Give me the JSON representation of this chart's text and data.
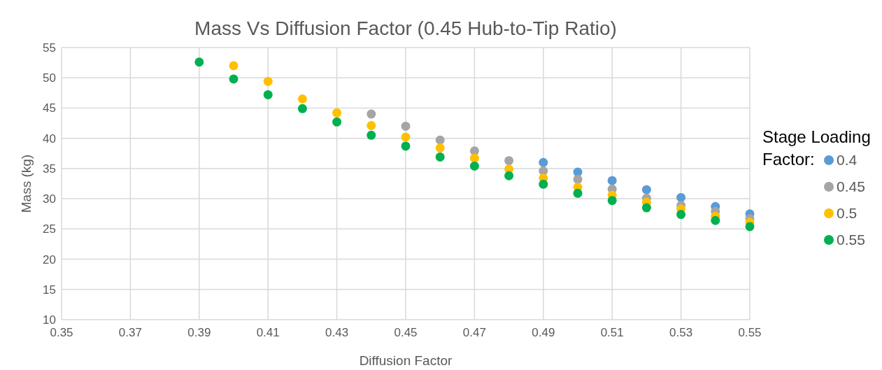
{
  "chart_data": {
    "type": "scatter",
    "title": "Mass Vs Diffusion Factor (0.45 Hub-to-Tip Ratio)",
    "xlabel": "Diffusion Factor",
    "ylabel": "Mass (kg)",
    "legend_title": "Stage Loading Factor:",
    "x": [
      0.39,
      0.4,
      0.41,
      0.42,
      0.43,
      0.44,
      0.45,
      0.46,
      0.47,
      0.48,
      0.49,
      0.5,
      0.51,
      0.52,
      0.53,
      0.54,
      0.55
    ],
    "series": [
      {
        "name": "0.4",
        "color": "#5b9bd5",
        "values": [
          null,
          null,
          null,
          null,
          null,
          null,
          null,
          null,
          null,
          null,
          36.0,
          34.4,
          33.0,
          31.5,
          30.2,
          28.7,
          27.5
        ]
      },
      {
        "name": "0.45",
        "color": "#a5a5a5",
        "values": [
          null,
          null,
          null,
          null,
          null,
          44.0,
          42.0,
          39.7,
          37.9,
          36.3,
          34.6,
          33.2,
          31.6,
          30.1,
          28.9,
          27.9,
          26.7
        ]
      },
      {
        "name": "0.5",
        "color": "#ffc000",
        "values": [
          null,
          52.0,
          49.4,
          46.5,
          44.2,
          42.1,
          40.2,
          38.4,
          36.7,
          34.9,
          33.4,
          31.9,
          30.6,
          29.4,
          28.3,
          27.1,
          26.1
        ]
      },
      {
        "name": "0.55",
        "color": "#00b050",
        "values": [
          52.6,
          49.8,
          47.2,
          44.9,
          42.7,
          40.5,
          38.7,
          36.9,
          35.4,
          33.8,
          32.4,
          30.9,
          29.7,
          28.5,
          27.4,
          26.4,
          25.4
        ]
      }
    ],
    "xlim": [
      0.35,
      0.55
    ],
    "xticks": [
      0.35,
      0.37,
      0.39,
      0.41,
      0.43,
      0.45,
      0.47,
      0.49,
      0.51,
      0.53,
      0.55
    ],
    "ylim": [
      10,
      55
    ],
    "yticks": [
      10,
      15,
      20,
      25,
      30,
      35,
      40,
      45,
      50,
      55
    ],
    "grid": true,
    "legend": "right",
    "marker": "circle"
  }
}
